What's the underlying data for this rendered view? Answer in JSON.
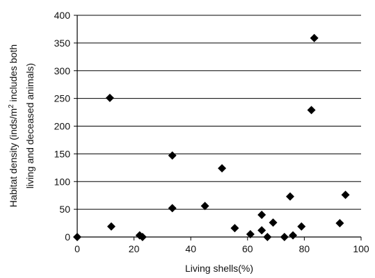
{
  "chart_data": {
    "type": "scatter",
    "title": "",
    "xlabel": "Living shells(%)",
    "ylabel_line1": "Habitat density (inds/m",
    "ylabel_sup": "2",
    "ylabel_line1_rest": " includes both",
    "ylabel_line2": "living and deceased animals)",
    "xlim": [
      0,
      100
    ],
    "ylim": [
      0,
      400
    ],
    "xticks": [
      0,
      20,
      40,
      60,
      80,
      100
    ],
    "yticks": [
      0,
      50,
      100,
      150,
      200,
      250,
      300,
      350,
      400
    ],
    "grid": "horizontal",
    "legend": "none",
    "marker_color": "#000000",
    "grid_color": "#000000",
    "series": [
      {
        "marker": "diamond",
        "points": [
          {
            "x": 0,
            "y": 0
          },
          {
            "x": 11.5,
            "y": 251
          },
          {
            "x": 12,
            "y": 19
          },
          {
            "x": 22,
            "y": 3
          },
          {
            "x": 23,
            "y": 0
          },
          {
            "x": 33.5,
            "y": 147
          },
          {
            "x": 33.5,
            "y": 52
          },
          {
            "x": 45,
            "y": 56
          },
          {
            "x": 51,
            "y": 124
          },
          {
            "x": 55.5,
            "y": 16
          },
          {
            "x": 61,
            "y": 5
          },
          {
            "x": 65,
            "y": 40
          },
          {
            "x": 65,
            "y": 12
          },
          {
            "x": 67,
            "y": 0
          },
          {
            "x": 69,
            "y": 26
          },
          {
            "x": 73,
            "y": 0
          },
          {
            "x": 75,
            "y": 73
          },
          {
            "x": 76,
            "y": 3
          },
          {
            "x": 79,
            "y": 19
          },
          {
            "x": 82.5,
            "y": 229
          },
          {
            "x": 83.5,
            "y": 359
          },
          {
            "x": 92.5,
            "y": 25
          },
          {
            "x": 94.5,
            "y": 76
          }
        ]
      }
    ]
  }
}
